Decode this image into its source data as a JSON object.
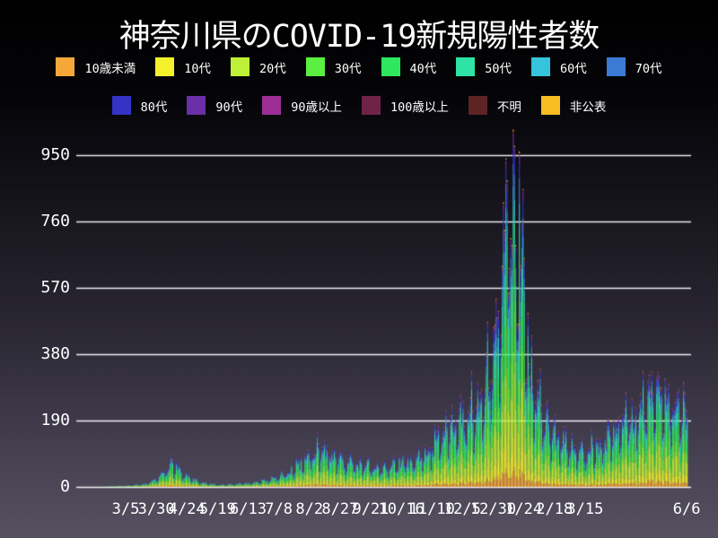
{
  "title": "神奈川県のCOVID-19新規陽性者数",
  "chart_data": {
    "type": "bar",
    "stacked": true,
    "title": "神奈川県のCOVID-19新規陽性者数",
    "xlabel": "",
    "ylabel": "",
    "grid": true,
    "grid_color": "#ffffff",
    "text_color": "#ffffff",
    "legend_position": "top",
    "ylim": [
      0,
      1000
    ],
    "y_ticks": [
      950,
      760,
      570,
      380,
      190,
      0
    ],
    "x_ticks": [
      {
        "label": "3/5",
        "date": "2020-03-05"
      },
      {
        "label": "3/30",
        "date": "2020-03-30"
      },
      {
        "label": "4/24",
        "date": "2020-04-24"
      },
      {
        "label": "5/19",
        "date": "2020-05-19"
      },
      {
        "label": "6/13",
        "date": "2020-06-13"
      },
      {
        "label": "7/8",
        "date": "2020-07-08"
      },
      {
        "label": "8/2",
        "date": "2020-08-02"
      },
      {
        "label": "8/27",
        "date": "2020-08-27"
      },
      {
        "label": "9/21",
        "date": "2020-09-21"
      },
      {
        "label": "10/16",
        "date": "2020-10-16"
      },
      {
        "label": "11/10",
        "date": "2020-11-10"
      },
      {
        "label": "12/5",
        "date": "2020-12-05"
      },
      {
        "label": "12/30",
        "date": "2020-12-30"
      },
      {
        "label": "1/24",
        "date": "2021-01-24"
      },
      {
        "label": "2/18",
        "date": "2021-02-18"
      },
      {
        "label": "3/15",
        "date": "2021-03-15"
      },
      {
        "label": "6/6",
        "date": "2021-06-06"
      }
    ],
    "date_range": {
      "start": "2020-02-16",
      "end": "2021-06-06"
    },
    "peak": {
      "date": "2021-01-17",
      "value": 985
    },
    "series": [
      {
        "name": "10歳未満",
        "color": "#f6a73a",
        "share": 0.05
      },
      {
        "name": "10代",
        "color": "#f4f12c",
        "share": 0.08
      },
      {
        "name": "20代",
        "color": "#bdf036",
        "share": 0.21
      },
      {
        "name": "30代",
        "color": "#5bef41",
        "share": 0.155
      },
      {
        "name": "40代",
        "color": "#2ee75e",
        "share": 0.15
      },
      {
        "name": "50代",
        "color": "#2fe3a4",
        "share": 0.125
      },
      {
        "name": "60代",
        "color": "#36c3dc",
        "share": 0.075
      },
      {
        "name": "70代",
        "color": "#3b7bd6",
        "share": 0.065
      },
      {
        "name": "80代",
        "color": "#3532c6",
        "share": 0.05
      },
      {
        "name": "90代",
        "color": "#6a2fa6",
        "share": 0.02
      },
      {
        "name": "90歳以上",
        "color": "#9c2e97",
        "share": 0.01
      },
      {
        "name": "100歳以上",
        "color": "#6f2447",
        "share": 0.002
      },
      {
        "name": "不明",
        "color": "#5e2323",
        "share": 0.003
      },
      {
        "name": "非公表",
        "color": "#f9bc23",
        "share": 0.005
      }
    ],
    "envelope_daily_totals": [
      [
        "2020-02-16",
        1
      ],
      [
        "2020-03-01",
        3
      ],
      [
        "2020-03-15",
        6
      ],
      [
        "2020-03-25",
        14
      ],
      [
        "2020-04-03",
        32
      ],
      [
        "2020-04-11",
        68
      ],
      [
        "2020-04-16",
        55
      ],
      [
        "2020-04-25",
        30
      ],
      [
        "2020-05-05",
        14
      ],
      [
        "2020-05-20",
        6
      ],
      [
        "2020-06-05",
        9
      ],
      [
        "2020-06-20",
        14
      ],
      [
        "2020-07-01",
        22
      ],
      [
        "2020-07-10",
        34
      ],
      [
        "2020-07-18",
        50
      ],
      [
        "2020-07-25",
        66
      ],
      [
        "2020-08-01",
        90
      ],
      [
        "2020-08-09",
        112
      ],
      [
        "2020-08-16",
        96
      ],
      [
        "2020-08-23",
        84
      ],
      [
        "2020-09-01",
        78
      ],
      [
        "2020-09-10",
        68
      ],
      [
        "2020-09-20",
        62
      ],
      [
        "2020-10-01",
        60
      ],
      [
        "2020-10-10",
        66
      ],
      [
        "2020-10-20",
        72
      ],
      [
        "2020-11-01",
        85
      ],
      [
        "2020-11-10",
        120
      ],
      [
        "2020-11-18",
        160
      ],
      [
        "2020-11-26",
        182
      ],
      [
        "2020-12-04",
        198
      ],
      [
        "2020-12-12",
        215
      ],
      [
        "2020-12-18",
        242
      ],
      [
        "2020-12-24",
        300
      ],
      [
        "2020-12-29",
        380
      ],
      [
        "2021-01-02",
        460
      ],
      [
        "2021-01-06",
        570
      ],
      [
        "2021-01-10",
        730
      ],
      [
        "2021-01-14",
        825
      ],
      [
        "2021-01-17",
        845
      ],
      [
        "2021-01-20",
        735
      ],
      [
        "2021-01-24",
        540
      ],
      [
        "2021-01-28",
        385
      ],
      [
        "2021-02-03",
        280
      ],
      [
        "2021-02-08",
        215
      ],
      [
        "2021-02-14",
        165
      ],
      [
        "2021-02-21",
        140
      ],
      [
        "2021-03-01",
        120
      ],
      [
        "2021-03-10",
        108
      ],
      [
        "2021-03-20",
        115
      ],
      [
        "2021-03-28",
        130
      ],
      [
        "2021-04-05",
        148
      ],
      [
        "2021-04-12",
        165
      ],
      [
        "2021-04-20",
        195
      ],
      [
        "2021-04-28",
        230
      ],
      [
        "2021-05-06",
        255
      ],
      [
        "2021-05-13",
        278
      ],
      [
        "2021-05-20",
        262
      ],
      [
        "2021-05-27",
        242
      ],
      [
        "2021-06-02",
        226
      ],
      [
        "2021-06-06",
        215
      ]
    ],
    "weekday_factors": [
      1.0,
      0.6,
      0.78,
      1.05,
      1.12,
      1.16,
      1.18
    ],
    "noise": {
      "seed": 11,
      "amplitude": 0.22
    },
    "clamp_max": 985
  }
}
